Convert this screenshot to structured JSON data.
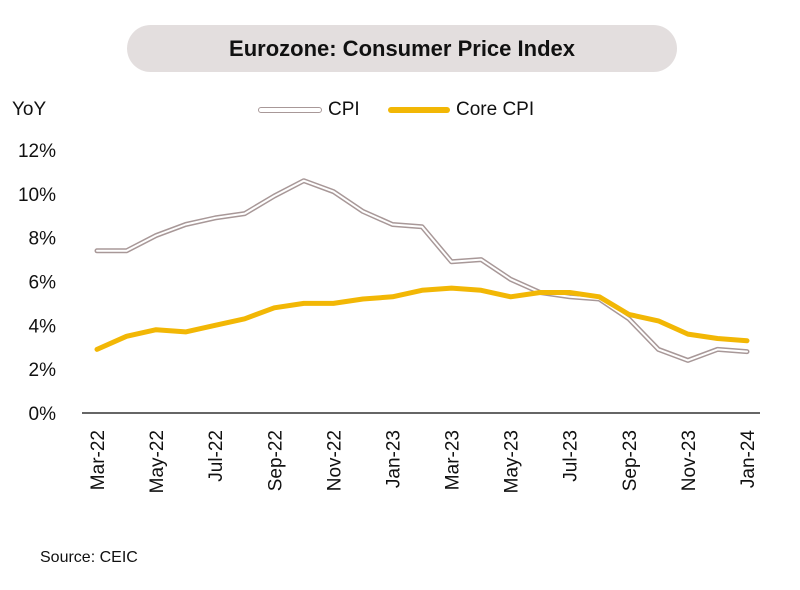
{
  "chart_data": {
    "type": "line",
    "title": "Eurozone: Consumer Price Index",
    "ylabel": "YoY",
    "xlabel": "",
    "ylim": [
      0,
      12
    ],
    "yticks": [
      "0%",
      "2%",
      "4%",
      "6%",
      "8%",
      "10%",
      "12%"
    ],
    "categories": [
      "Mar-22",
      "Apr-22",
      "May-22",
      "Jun-22",
      "Jul-22",
      "Aug-22",
      "Sep-22",
      "Oct-22",
      "Nov-22",
      "Dec-22",
      "Jan-23",
      "Feb-23",
      "Mar-23",
      "Apr-23",
      "May-23",
      "Jun-23",
      "Jul-23",
      "Aug-23",
      "Sep-23",
      "Oct-23",
      "Nov-23",
      "Dec-23",
      "Jan-24"
    ],
    "xtick_labels": [
      "Mar-22",
      "May-22",
      "Jul-22",
      "Sep-22",
      "Nov-22",
      "Jan-23",
      "Mar-23",
      "May-23",
      "Jul-23",
      "Sep-23",
      "Nov-23",
      "Jan-24"
    ],
    "series": [
      {
        "name": "CPI",
        "color": "#a89898",
        "style": "double",
        "values": [
          7.4,
          7.4,
          8.1,
          8.6,
          8.9,
          9.1,
          9.9,
          10.6,
          10.1,
          9.2,
          8.6,
          8.5,
          6.9,
          7.0,
          6.1,
          5.5,
          5.3,
          5.2,
          4.3,
          2.9,
          2.4,
          2.9,
          2.8
        ]
      },
      {
        "name": "Core CPI",
        "color": "#f2b705",
        "style": "solid",
        "values": [
          2.9,
          3.5,
          3.8,
          3.7,
          4.0,
          4.3,
          4.8,
          5.0,
          5.0,
          5.2,
          5.3,
          5.6,
          5.7,
          5.6,
          5.3,
          5.5,
          5.5,
          5.3,
          4.5,
          4.2,
          3.6,
          3.4,
          3.3
        ]
      }
    ],
    "grid": false,
    "legend": "top"
  },
  "source": "Source: CEIC"
}
